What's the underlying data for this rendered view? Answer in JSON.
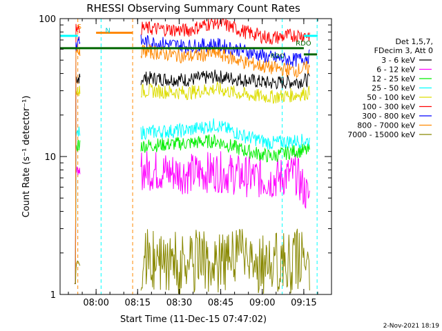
{
  "chart_data": {
    "type": "line",
    "title": "RHESSI Observing Summary Count Rates",
    "xlabel": "Start Time (11-Dec-15 07:47:02)",
    "ylabel": "Count Rate (s⁻¹ detector⁻¹)",
    "y_scale": "log",
    "ylim": [
      1,
      100
    ],
    "xlim": [
      "07:47",
      "09:25"
    ],
    "x_ticks": [
      "08:00",
      "08:15",
      "08:30",
      "08:45",
      "09:00",
      "09:15"
    ],
    "y_ticks": [
      "1",
      "10",
      "100"
    ],
    "legend_header": [
      "Det 1,5,7,",
      "FDecim 3, Att 0"
    ],
    "legend_position": "right",
    "footer": "2-Nov-2021 18:19",
    "flag_labels": {
      "saa": "S",
      "night": "N",
      "rdo": "RDO"
    },
    "series": [
      {
        "name": "3 - 6 keV",
        "color": "#000000",
        "profile": [
          [
            8.3,
            37
          ],
          [
            8.55,
            36
          ],
          [
            8.72,
            38
          ],
          [
            8.9,
            36
          ],
          [
            9.05,
            34
          ],
          [
            9.2,
            35
          ],
          [
            9.28,
            36
          ]
        ]
      },
      {
        "name": "6 - 12 keV",
        "color": "#ff00ff",
        "profile": [
          [
            8.3,
            8.0
          ],
          [
            8.55,
            7.5
          ],
          [
            8.72,
            7.8
          ],
          [
            8.9,
            7.2
          ],
          [
            9.05,
            6.8
          ],
          [
            9.2,
            7.5
          ],
          [
            9.28,
            5.0
          ]
        ]
      },
      {
        "name": "12 - 25 keV",
        "color": "#00ee00",
        "profile": [
          [
            8.3,
            12
          ],
          [
            8.55,
            12.5
          ],
          [
            8.72,
            13
          ],
          [
            8.9,
            11
          ],
          [
            9.05,
            10
          ],
          [
            9.2,
            11
          ],
          [
            9.28,
            11
          ]
        ]
      },
      {
        "name": "25 - 50 keV",
        "color": "#00ffff",
        "profile": [
          [
            8.3,
            15
          ],
          [
            8.55,
            15.5
          ],
          [
            8.72,
            17
          ],
          [
            8.9,
            14
          ],
          [
            9.05,
            12.5
          ],
          [
            9.2,
            13
          ],
          [
            9.28,
            13
          ]
        ]
      },
      {
        "name": "50 - 100 keV",
        "color": "#dddd00",
        "profile": [
          [
            8.3,
            30
          ],
          [
            8.55,
            29
          ],
          [
            8.72,
            31
          ],
          [
            8.9,
            28
          ],
          [
            9.05,
            27
          ],
          [
            9.2,
            28
          ],
          [
            9.28,
            29
          ]
        ]
      },
      {
        "name": "100 - 300 keV",
        "color": "#ff0000",
        "profile": [
          [
            8.3,
            85
          ],
          [
            8.55,
            82
          ],
          [
            8.72,
            95
          ],
          [
            8.9,
            80
          ],
          [
            9.05,
            72
          ],
          [
            9.2,
            76
          ],
          [
            9.28,
            76
          ]
        ]
      },
      {
        "name": "300 - 800 keV",
        "color": "#0000ff",
        "profile": [
          [
            8.3,
            68
          ],
          [
            8.55,
            63
          ],
          [
            8.72,
            65
          ],
          [
            8.9,
            58
          ],
          [
            9.05,
            52
          ],
          [
            9.2,
            50
          ],
          [
            9.28,
            53
          ]
        ]
      },
      {
        "name": "800 - 7000 keV",
        "color": "#ff8800",
        "profile": [
          [
            8.3,
            58
          ],
          [
            8.55,
            53
          ],
          [
            8.72,
            56
          ],
          [
            8.9,
            48
          ],
          [
            9.05,
            44
          ],
          [
            9.2,
            42
          ],
          [
            9.28,
            44
          ]
        ]
      },
      {
        "name": "7000 - 15000 keV",
        "color": "#888800",
        "profile": [
          [
            8.3,
            1.6
          ],
          [
            8.55,
            1.7
          ],
          [
            8.72,
            1.8
          ],
          [
            8.9,
            1.6
          ],
          [
            9.05,
            1.6
          ],
          [
            9.2,
            1.7
          ],
          [
            9.28,
            1.7
          ]
        ]
      }
    ]
  }
}
